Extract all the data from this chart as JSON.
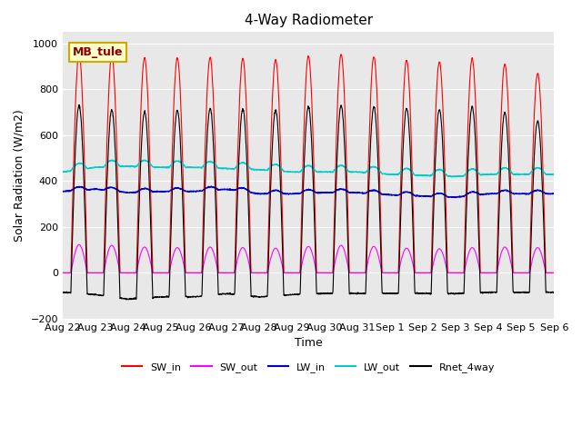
{
  "title": "4-Way Radiometer",
  "xlabel": "Time",
  "ylabel": "Solar Radiation (W/m2)",
  "ylim": [
    -200,
    1050
  ],
  "xlim": [
    0,
    15
  ],
  "tick_labels": [
    "Aug 22",
    "Aug 23",
    "Aug 24",
    "Aug 25",
    "Aug 26",
    "Aug 27",
    "Aug 28",
    "Aug 29",
    "Aug 30",
    "Aug 31",
    "Sep 1",
    "Sep 2",
    "Sep 3",
    "Sep 4",
    "Sep 5",
    "Sep 6"
  ],
  "colors": {
    "SW_in": "#ff0000",
    "SW_out": "#ff00ff",
    "LW_in": "#0000cc",
    "LW_out": "#00cccc",
    "Rnet_4way": "#000000"
  },
  "legend_label": "MB_tule",
  "background_color": "#e8e8e8",
  "figure_background": "#ffffff",
  "num_days": 15,
  "SW_in_peak": 950,
  "SW_out_peak": 120,
  "LW_in_base": 330,
  "LW_in_peak": 380,
  "LW_out_base": 420,
  "LW_out_peak": 480,
  "Rnet_peak": 720,
  "Rnet_night": -100
}
